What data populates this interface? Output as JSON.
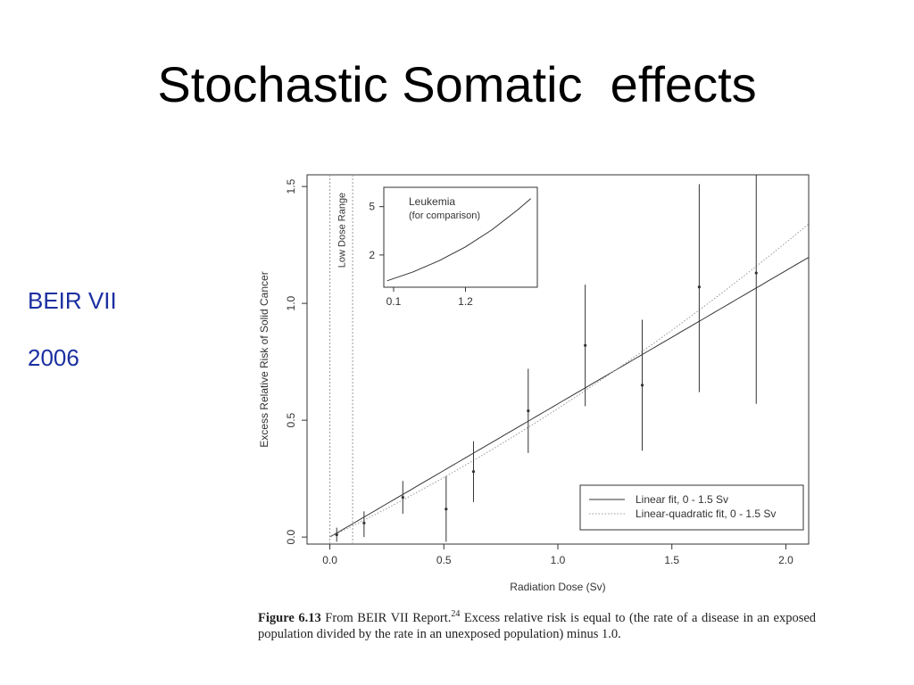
{
  "slide": {
    "title": "Stochastic Somatic  effects",
    "side_labels": [
      "BEIR VII",
      "2006"
    ]
  },
  "colors": {
    "title": "#000000",
    "side_label": "#1c2fa0",
    "chart_ink": "#333333",
    "dotted_line": "#999999"
  },
  "caption": {
    "figure_label": "Figure 6.13",
    "part1": "From BEIR VII Report.",
    "superscript": "24",
    "part2": "Excess relative risk is equal to (the rate of a disease in an exposed population divided by the rate in an unexposed population) minus 1.0."
  },
  "chart_data": [
    {
      "type": "scatter",
      "xlabel": "Radiation Dose (Sv)",
      "ylabel": "Excess Relative Risk of Solid Cancer",
      "xlim": [
        -0.1,
        2.1
      ],
      "ylim": [
        -0.03,
        1.55
      ],
      "x_ticks": [
        "0.0",
        "0.5",
        "1.0",
        "1.5",
        "2.0"
      ],
      "y_ticks": [
        "0.0",
        "0.5",
        "1.0",
        "1.5"
      ],
      "x_tick_values": [
        0.0,
        0.5,
        1.0,
        1.5,
        2.0
      ],
      "y_tick_values": [
        0.0,
        0.5,
        1.0,
        1.5
      ],
      "grid": false,
      "points": [
        {
          "x": 0.03,
          "y": 0.01,
          "lo": -0.02,
          "hi": 0.04
        },
        {
          "x": 0.15,
          "y": 0.06,
          "lo": 0.0,
          "hi": 0.11
        },
        {
          "x": 0.32,
          "y": 0.17,
          "lo": 0.1,
          "hi": 0.24
        },
        {
          "x": 0.51,
          "y": 0.12,
          "lo": -0.02,
          "hi": 0.26
        },
        {
          "x": 0.63,
          "y": 0.28,
          "lo": 0.15,
          "hi": 0.41
        },
        {
          "x": 0.87,
          "y": 0.54,
          "lo": 0.36,
          "hi": 0.72
        },
        {
          "x": 1.12,
          "y": 0.82,
          "lo": 0.56,
          "hi": 1.08
        },
        {
          "x": 1.37,
          "y": 0.65,
          "lo": 0.37,
          "hi": 0.93
        },
        {
          "x": 1.62,
          "y": 1.07,
          "lo": 0.62,
          "hi": 1.51
        },
        {
          "x": 1.87,
          "y": 1.13,
          "lo": 0.57,
          "hi": 1.55
        }
      ],
      "fits": [
        {
          "name": "Linear fit, 0 - 1.5 Sv",
          "style": "solid",
          "slope": 0.57,
          "quad": 0.0
        },
        {
          "name": "Linear-quadratic fit, 0 - 1.5 Sv",
          "style": "dotted",
          "slope": 0.47,
          "quad": 0.08
        }
      ],
      "low_dose_range": {
        "label": "Low Dose Range",
        "x": [
          0.0,
          0.1
        ]
      },
      "legend_position": "bottom-right"
    },
    {
      "type": "line",
      "title_lines": [
        "Leukemia",
        "(for comparison)"
      ],
      "x_ticks": [
        "0.1",
        "1.2"
      ],
      "y_ticks": [
        "2",
        "5"
      ],
      "x_tick_values": [
        0.1,
        1.2
      ],
      "y_tick_values": [
        2,
        5
      ],
      "xlim": [
        -0.05,
        2.3
      ],
      "ylim": [
        0.0,
        6.2
      ],
      "x": [
        0.0,
        0.4,
        0.8,
        1.2,
        1.6,
        2.0,
        2.2
      ],
      "y": [
        0.4,
        0.95,
        1.65,
        2.5,
        3.55,
        4.8,
        5.5
      ],
      "position": "top-left inset"
    }
  ]
}
